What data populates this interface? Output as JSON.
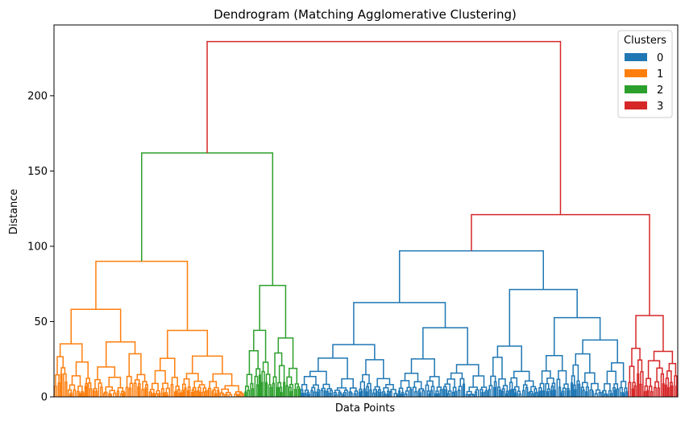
{
  "chart_data": {
    "type": "dendrogram",
    "title": "Dendrogram (Matching Agglomerative Clustering)",
    "xlabel": "Data Points",
    "ylabel": "Distance",
    "ylim": [
      0,
      247
    ],
    "yticks": [
      0,
      50,
      100,
      150,
      200
    ],
    "grid": false,
    "legend": {
      "title": "Clusters",
      "placement": "top-right",
      "entries": [
        {
          "label": "0",
          "color": "#1f77b4"
        },
        {
          "label": "1",
          "color": "#ff7f0e"
        },
        {
          "label": "2",
          "color": "#2ca02c"
        },
        {
          "label": "3",
          "color": "#d62728"
        }
      ]
    },
    "link_color_root": "#d62728",
    "clusters": [
      {
        "name": "1",
        "color": "#ff7f0e",
        "leaf_span": [
          0,
          0.305
        ]
      },
      {
        "name": "2",
        "color": "#2ca02c",
        "leaf_span": [
          0.305,
          0.395
        ]
      },
      {
        "name": "0",
        "color": "#1f77b4",
        "leaf_span": [
          0.395,
          0.92
        ]
      },
      {
        "name": "3",
        "color": "#d62728",
        "leaf_span": [
          0.92,
          1.0
        ]
      }
    ],
    "merges": {
      "root": 236,
      "left_group_1_2": 162,
      "cluster_1_top": 90,
      "cluster_2_top": 74,
      "right_group_0_3": 121,
      "cluster_0_top": 97,
      "cluster_3_top": 54
    }
  }
}
